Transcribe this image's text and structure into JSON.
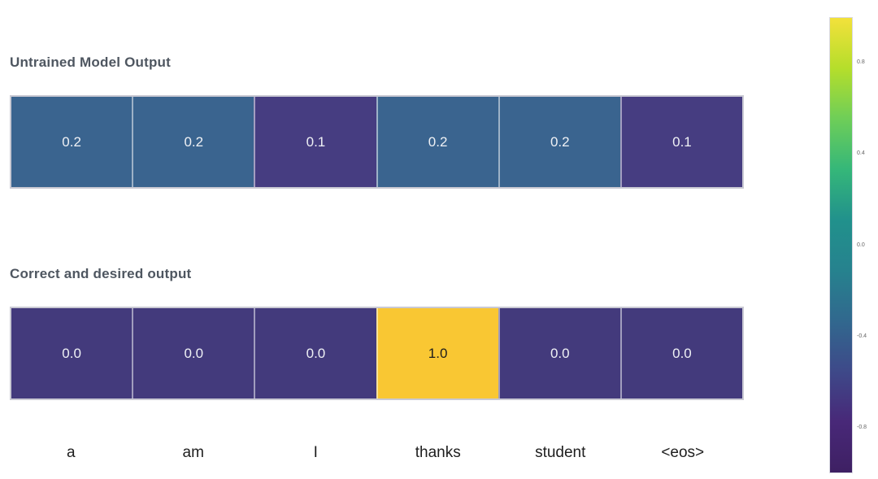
{
  "chart_data": {
    "type": "heatmap",
    "title": "",
    "xlabel": "",
    "ylabel": "",
    "categories": [
      "a",
      "am",
      "I",
      "thanks",
      "student",
      "<eos>"
    ],
    "rows": [
      {
        "title": "Untrained Model Output",
        "values": [
          0.2,
          0.2,
          0.1,
          0.2,
          0.2,
          0.1
        ],
        "cell_labels": [
          "0.2",
          "0.2",
          "0.1",
          "0.2",
          "0.2",
          "0.1"
        ],
        "cell_colors": [
          "#3a648f",
          "#3a648f",
          "#463d81",
          "#3a648f",
          "#3a648f",
          "#463d81"
        ],
        "cell_text_colors": [
          "#eff1f5",
          "#eff1f5",
          "#eff1f5",
          "#eff1f5",
          "#eff1f5",
          "#eff1f5"
        ]
      },
      {
        "title": "Correct and desired output",
        "values": [
          0.0,
          0.0,
          0.0,
          1.0,
          0.0,
          0.0
        ],
        "cell_labels": [
          "0.0",
          "0.0",
          "0.0",
          "1.0",
          "0.0",
          "0.0"
        ],
        "cell_colors": [
          "#433a7c",
          "#433a7c",
          "#433a7c",
          "#f9c733",
          "#433a7c",
          "#433a7c"
        ],
        "cell_text_colors": [
          "#eff1f5",
          "#eff1f5",
          "#eff1f5",
          "#1d1d1d",
          "#eff1f5",
          "#eff1f5"
        ]
      }
    ],
    "colorbar": {
      "colormap": "viridis",
      "range": [
        -1.0,
        1.0
      ],
      "tick_labels": [
        "0.8",
        "0.4",
        "0.0",
        "-0.4",
        "-0.8"
      ],
      "tick_positions_pct": [
        10,
        30,
        50,
        70,
        90
      ],
      "gradient_top_to_bottom": [
        "#f3e13b",
        "#b5de2b",
        "#6ece58",
        "#35b779",
        "#21918c",
        "#26828e",
        "#31688e",
        "#3e4989",
        "#482878",
        "#3e2063"
      ],
      "legend_position": "right"
    },
    "colors": {
      "title_text": "#4e5660",
      "axis_label_text": "#1e1e1e",
      "tick_text": "#666666",
      "grid_border": "#c9c9d3"
    },
    "layout": {
      "grid": false
    }
  }
}
